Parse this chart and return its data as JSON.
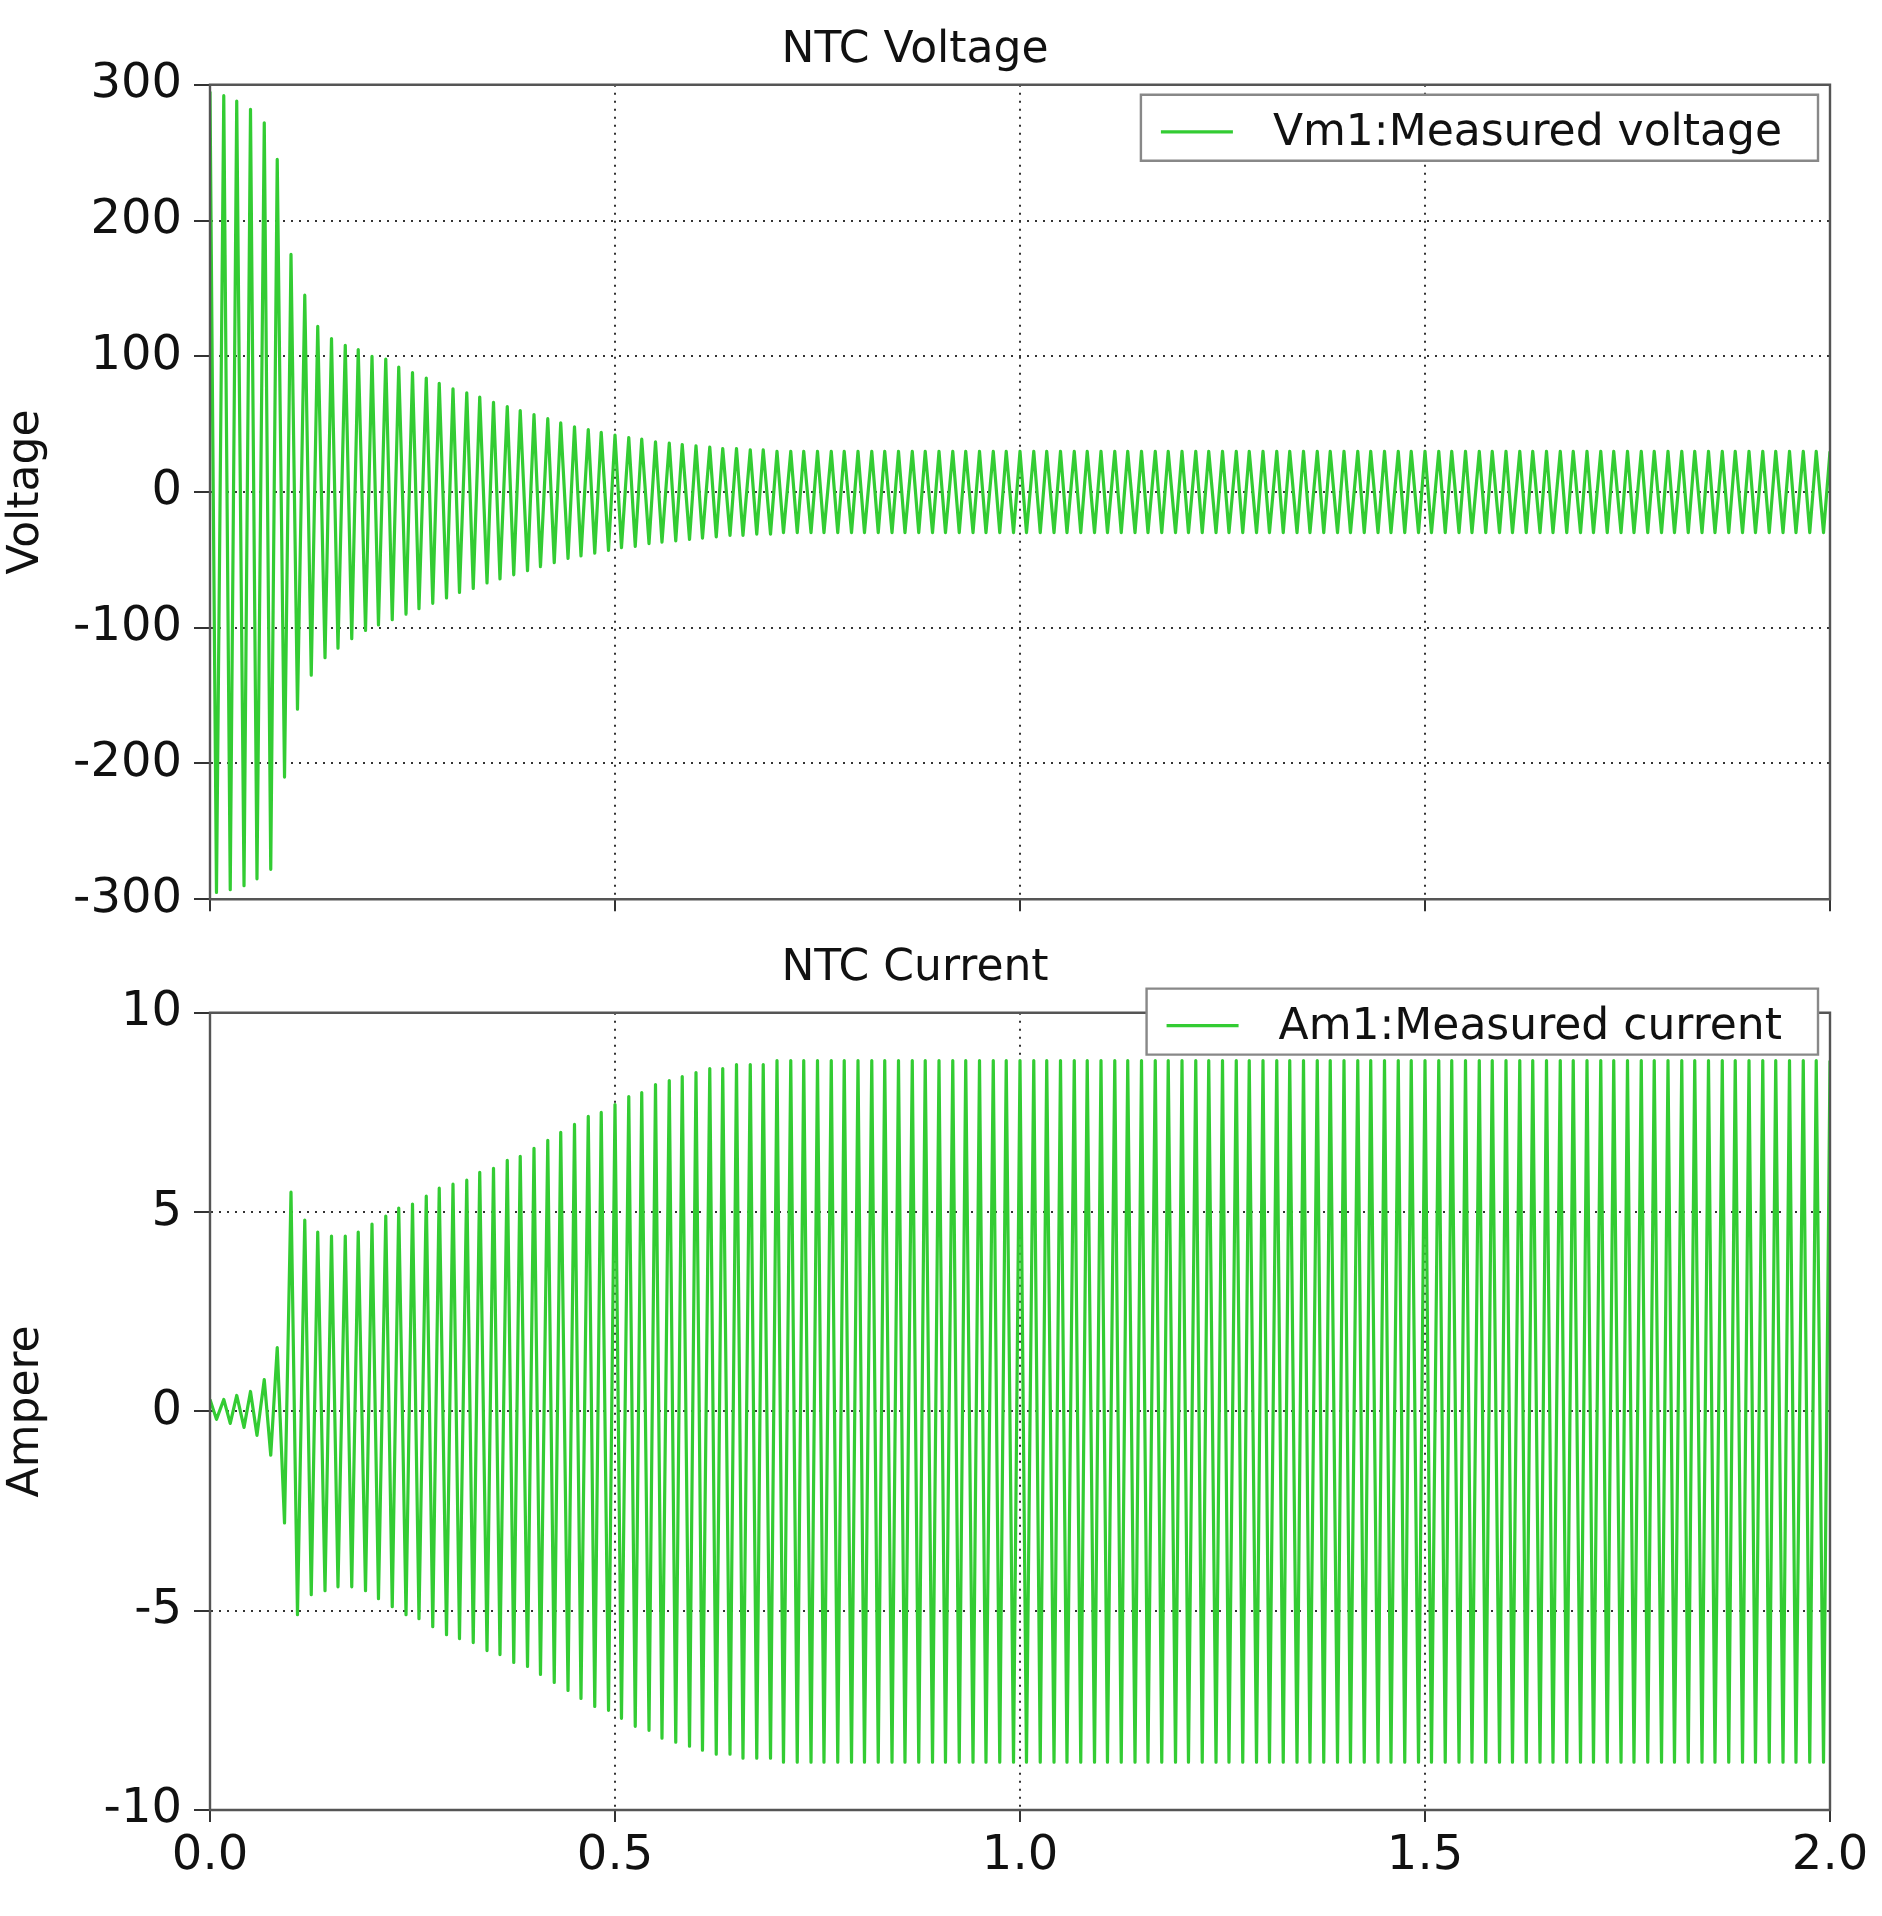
{
  "chart_data": [
    {
      "type": "line",
      "title": "NTC Voltage",
      "ylabel": "Voltage",
      "xlim": [
        0,
        2
      ],
      "xticks": [
        0,
        0.5,
        1,
        1.5,
        2
      ],
      "ylim": [
        -300,
        300
      ],
      "yticks": [
        -300,
        -200,
        -100,
        0,
        100,
        200,
        300
      ],
      "grid": true,
      "legend": "top right",
      "marker": "none",
      "tick_labels": "y",
      "x": [
        0,
        0.008,
        0.017,
        0.025,
        0.033,
        0.042,
        0.05,
        0.058,
        0.067,
        0.075,
        0.083,
        0.092,
        0.1,
        0.108,
        0.117,
        0.125,
        0.133,
        0.142,
        0.15,
        0.158,
        0.167,
        0.175,
        0.183,
        0.192,
        0.2,
        0.208,
        0.217,
        0.225,
        0.233,
        0.242,
        0.25,
        0.258,
        0.267,
        0.275,
        0.283,
        0.292,
        0.3,
        0.308,
        0.317,
        0.325,
        0.333,
        0.342,
        0.35,
        0.358,
        0.367,
        0.375,
        0.383,
        0.392,
        0.4,
        0.408,
        0.417,
        0.425,
        0.433,
        0.442,
        0.45,
        0.458,
        0.467,
        0.475,
        0.483,
        0.492,
        0.5,
        0.508,
        0.517,
        0.525,
        0.533,
        0.542,
        0.55,
        0.558,
        0.567,
        0.575,
        0.583,
        0.592,
        0.6,
        0.608,
        0.617,
        0.625,
        0.633,
        0.642,
        0.65,
        0.658,
        0.667,
        0.675,
        0.683,
        0.692,
        0.7,
        0.708,
        0.717,
        0.725,
        0.733,
        0.742,
        0.75,
        0.758,
        0.767,
        0.775,
        0.783,
        0.792,
        0.8,
        0.808,
        0.817,
        0.825,
        0.833,
        0.842,
        0.85,
        0.858,
        0.867,
        0.875,
        0.883,
        0.892,
        0.9,
        0.908,
        0.917,
        0.925,
        0.933,
        0.942,
        0.95,
        0.958,
        0.967,
        0.975,
        0.983,
        0.992,
        1,
        1.008,
        1.017,
        1.025,
        1.033,
        1.042,
        1.05,
        1.058,
        1.067,
        1.075,
        1.083,
        1.092,
        1.1,
        1.108,
        1.117,
        1.125,
        1.133,
        1.142,
        1.15,
        1.158,
        1.167,
        1.175,
        1.183,
        1.192,
        1.2,
        1.208,
        1.217,
        1.225,
        1.233,
        1.242,
        1.25,
        1.258,
        1.267,
        1.275,
        1.283,
        1.292,
        1.3,
        1.308,
        1.317,
        1.325,
        1.333,
        1.342,
        1.35,
        1.358,
        1.367,
        1.375,
        1.383,
        1.392,
        1.4,
        1.408,
        1.417,
        1.425,
        1.433,
        1.442,
        1.45,
        1.458,
        1.467,
        1.475,
        1.483,
        1.492,
        1.5,
        1.508,
        1.517,
        1.525,
        1.533,
        1.542,
        1.55,
        1.558,
        1.567,
        1.575,
        1.583,
        1.592,
        1.6,
        1.608,
        1.617,
        1.625,
        1.633,
        1.642,
        1.65,
        1.658,
        1.667,
        1.675,
        1.683,
        1.692,
        1.7,
        1.708,
        1.717,
        1.725,
        1.733,
        1.742,
        1.75,
        1.758,
        1.767,
        1.775,
        1.783,
        1.792,
        1.8,
        1.808,
        1.817,
        1.825,
        1.833,
        1.842,
        1.85,
        1.858,
        1.867,
        1.875,
        1.883,
        1.892,
        1.9,
        1.908,
        1.917,
        1.925,
        1.933,
        1.942,
        1.95,
        1.958,
        1.967,
        1.975,
        1.983,
        1.992,
        2
      ],
      "series": [
        {
          "name": "Vm1:Measured voltage",
          "color": "#33cc33",
          "values": [
            295,
            -295,
            292,
            -293,
            288,
            -290,
            282,
            -285,
            272,
            -278,
            245,
            -210,
            175,
            -160,
            145,
            -135,
            122,
            -122,
            113,
            -115,
            108,
            -108,
            105,
            -102,
            100,
            -98,
            98,
            -94,
            92,
            -90,
            88,
            -86,
            84,
            -82,
            80,
            -78,
            76,
            -74,
            73,
            -71,
            70,
            -67,
            66,
            -64,
            63,
            -61,
            60,
            -58,
            57,
            -55,
            54,
            -52,
            51,
            -49,
            48,
            -47,
            46,
            -45,
            44,
            -43,
            42,
            -41,
            40,
            -40,
            39,
            -38,
            37,
            -37,
            36,
            -36,
            35,
            -35,
            34,
            -34,
            33,
            -33,
            32,
            -32,
            32,
            -32,
            31,
            -31,
            31,
            -31,
            30,
            -30,
            30,
            -30,
            30,
            -30,
            30,
            -30,
            30,
            -30,
            30,
            -30,
            30,
            -30,
            30,
            -30,
            30,
            -30,
            30,
            -30,
            30,
            -30,
            30,
            -30,
            30,
            -30,
            30,
            -30,
            30,
            -30,
            30,
            -30,
            30,
            -30,
            30,
            -30,
            30,
            -30,
            30,
            -30,
            30,
            -30,
            30,
            -30,
            30,
            -30,
            30,
            -30,
            30,
            -30,
            30,
            -30,
            30,
            -30,
            30,
            -30,
            30,
            -30,
            30,
            -30,
            30,
            -30,
            30,
            -30,
            30,
            -30,
            30,
            -30,
            30,
            -30,
            30,
            -30,
            30,
            -30,
            30,
            -30,
            30,
            -30,
            30,
            -30,
            30,
            -30,
            30,
            -30,
            30,
            -30,
            30,
            -30,
            30,
            -30,
            30,
            -30,
            30,
            -30,
            30,
            -30,
            30,
            -30,
            30,
            -30,
            30,
            -30,
            30,
            -30,
            30,
            -30,
            30,
            -30,
            30,
            -30,
            30,
            -30,
            30,
            -30,
            30,
            -30,
            30,
            -30,
            30,
            -30,
            30,
            -30,
            30,
            -30,
            30,
            -30,
            30,
            -30,
            30,
            -30,
            30,
            -30,
            30,
            -30,
            30,
            -30,
            30,
            -30,
            30,
            -30,
            30,
            -30,
            30,
            -30,
            30,
            -30,
            30,
            -30,
            30,
            -30,
            30,
            -30,
            30,
            -30,
            30,
            -30,
            30
          ]
        }
      ]
    },
    {
      "type": "line",
      "title": "NTC Current",
      "ylabel": "Ampere",
      "xlim": [
        0,
        2
      ],
      "xticks": [
        {
          "value": 0,
          "label": "0.0"
        },
        0.5,
        {
          "value": 1,
          "label": "1.0"
        },
        1.5,
        {
          "value": 2,
          "label": "2.0"
        }
      ],
      "ylim": [
        -10,
        10
      ],
      "yticks": [
        -10,
        -5,
        0,
        5,
        10
      ],
      "grid": true,
      "legend": "top right",
      "marker": "none",
      "x": [
        0,
        0.008,
        0.017,
        0.025,
        0.033,
        0.042,
        0.05,
        0.058,
        0.067,
        0.075,
        0.083,
        0.092,
        0.1,
        0.108,
        0.117,
        0.125,
        0.133,
        0.142,
        0.15,
        0.158,
        0.167,
        0.175,
        0.183,
        0.192,
        0.2,
        0.208,
        0.217,
        0.225,
        0.233,
        0.242,
        0.25,
        0.258,
        0.267,
        0.275,
        0.283,
        0.292,
        0.3,
        0.308,
        0.317,
        0.325,
        0.333,
        0.342,
        0.35,
        0.358,
        0.367,
        0.375,
        0.383,
        0.392,
        0.4,
        0.408,
        0.417,
        0.425,
        0.433,
        0.442,
        0.45,
        0.458,
        0.467,
        0.475,
        0.483,
        0.492,
        0.5,
        0.508,
        0.517,
        0.525,
        0.533,
        0.542,
        0.55,
        0.558,
        0.567,
        0.575,
        0.583,
        0.592,
        0.6,
        0.608,
        0.617,
        0.625,
        0.633,
        0.642,
        0.65,
        0.658,
        0.667,
        0.675,
        0.683,
        0.692,
        0.7,
        0.708,
        0.717,
        0.725,
        0.733,
        0.742,
        0.75,
        0.758,
        0.767,
        0.775,
        0.783,
        0.792,
        0.8,
        0.808,
        0.817,
        0.825,
        0.833,
        0.842,
        0.85,
        0.858,
        0.867,
        0.875,
        0.883,
        0.892,
        0.9,
        0.908,
        0.917,
        0.925,
        0.933,
        0.942,
        0.95,
        0.958,
        0.967,
        0.975,
        0.983,
        0.992,
        1,
        1.008,
        1.017,
        1.025,
        1.033,
        1.042,
        1.05,
        1.058,
        1.067,
        1.075,
        1.083,
        1.092,
        1.1,
        1.108,
        1.117,
        1.125,
        1.133,
        1.142,
        1.15,
        1.158,
        1.167,
        1.175,
        1.183,
        1.192,
        1.2,
        1.208,
        1.217,
        1.225,
        1.233,
        1.242,
        1.25,
        1.258,
        1.267,
        1.275,
        1.283,
        1.292,
        1.3,
        1.308,
        1.317,
        1.325,
        1.333,
        1.342,
        1.35,
        1.358,
        1.367,
        1.375,
        1.383,
        1.392,
        1.4,
        1.408,
        1.417,
        1.425,
        1.433,
        1.442,
        1.45,
        1.458,
        1.467,
        1.475,
        1.483,
        1.492,
        1.5,
        1.508,
        1.517,
        1.525,
        1.533,
        1.542,
        1.55,
        1.558,
        1.567,
        1.575,
        1.583,
        1.592,
        1.6,
        1.608,
        1.617,
        1.625,
        1.633,
        1.642,
        1.65,
        1.658,
        1.667,
        1.675,
        1.683,
        1.692,
        1.7,
        1.708,
        1.717,
        1.725,
        1.733,
        1.742,
        1.75,
        1.758,
        1.767,
        1.775,
        1.783,
        1.792,
        1.8,
        1.808,
        1.817,
        1.825,
        1.833,
        1.842,
        1.85,
        1.858,
        1.867,
        1.875,
        1.883,
        1.892,
        1.9,
        1.908,
        1.917,
        1.925,
        1.933,
        1.942,
        1.95,
        1.958,
        1.967,
        1.975,
        1.983,
        1.992,
        2
      ],
      "series": [
        {
          "name": "Am1:Measured current",
          "color": "#33cc33",
          "values": [
            0.3,
            -0.2,
            0.3,
            -0.3,
            0.4,
            -0.4,
            0.5,
            -0.6,
            0.8,
            -1.1,
            1.6,
            -2.8,
            5.5,
            -5.1,
            4.8,
            -4.6,
            4.5,
            -4.5,
            4.4,
            -4.4,
            4.4,
            -4.4,
            4.5,
            -4.5,
            4.7,
            -4.7,
            4.9,
            -4.9,
            5.1,
            -5.1,
            5.2,
            -5.2,
            5.4,
            -5.4,
            5.6,
            -5.6,
            5.7,
            -5.7,
            5.8,
            -5.8,
            6.0,
            -6.0,
            6.1,
            -6.1,
            6.3,
            -6.3,
            6.4,
            -6.4,
            6.6,
            -6.6,
            6.8,
            -6.8,
            7.0,
            -7.0,
            7.2,
            -7.2,
            7.4,
            -7.4,
            7.5,
            -7.5,
            7.7,
            -7.7,
            7.9,
            -7.9,
            8.0,
            -8.0,
            8.2,
            -8.2,
            8.3,
            -8.3,
            8.4,
            -8.4,
            8.5,
            -8.5,
            8.6,
            -8.6,
            8.6,
            -8.6,
            8.7,
            -8.7,
            8.7,
            -8.7,
            8.7,
            -8.7,
            8.8,
            -8.8,
            8.8,
            -8.8,
            8.8,
            -8.8,
            8.8,
            -8.8,
            8.8,
            -8.8,
            8.8,
            -8.8,
            8.8,
            -8.8,
            8.8,
            -8.8,
            8.8,
            -8.8,
            8.8,
            -8.8,
            8.8,
            -8.8,
            8.8,
            -8.8,
            8.8,
            -8.8,
            8.8,
            -8.8,
            8.8,
            -8.8,
            8.8,
            -8.8,
            8.8,
            -8.8,
            8.8,
            -8.8,
            8.8,
            -8.8,
            8.8,
            -8.8,
            8.8,
            -8.8,
            8.8,
            -8.8,
            8.8,
            -8.8,
            8.8,
            -8.8,
            8.8,
            -8.8,
            8.8,
            -8.8,
            8.8,
            -8.8,
            8.8,
            -8.8,
            8.8,
            -8.8,
            8.8,
            -8.8,
            8.8,
            -8.8,
            8.8,
            -8.8,
            8.8,
            -8.8,
            8.8,
            -8.8,
            8.8,
            -8.8,
            8.8,
            -8.8,
            8.8,
            -8.8,
            8.8,
            -8.8,
            8.8,
            -8.8,
            8.8,
            -8.8,
            8.8,
            -8.8,
            8.8,
            -8.8,
            8.8,
            -8.8,
            8.8,
            -8.8,
            8.8,
            -8.8,
            8.8,
            -8.8,
            8.8,
            -8.8,
            8.8,
            -8.8,
            8.8,
            -8.8,
            8.8,
            -8.8,
            8.8,
            -8.8,
            8.8,
            -8.8,
            8.8,
            -8.8,
            8.8,
            -8.8,
            8.8,
            -8.8,
            8.8,
            -8.8,
            8.8,
            -8.8,
            8.8,
            -8.8,
            8.8,
            -8.8,
            8.8,
            -8.8,
            8.8,
            -8.8,
            8.8,
            -8.8,
            8.8,
            -8.8,
            8.8,
            -8.8,
            8.8,
            -8.8,
            8.8,
            -8.8,
            8.8,
            -8.8,
            8.8,
            -8.8,
            8.8,
            -8.8,
            8.8,
            -8.8,
            8.8,
            -8.8,
            8.8,
            -8.8,
            8.8,
            -8.8,
            8.8,
            -8.8,
            8.8,
            -8.8,
            8.8,
            -8.8,
            8.8,
            -8.8,
            8.8,
            -8.8,
            8.8
          ]
        }
      ]
    }
  ]
}
